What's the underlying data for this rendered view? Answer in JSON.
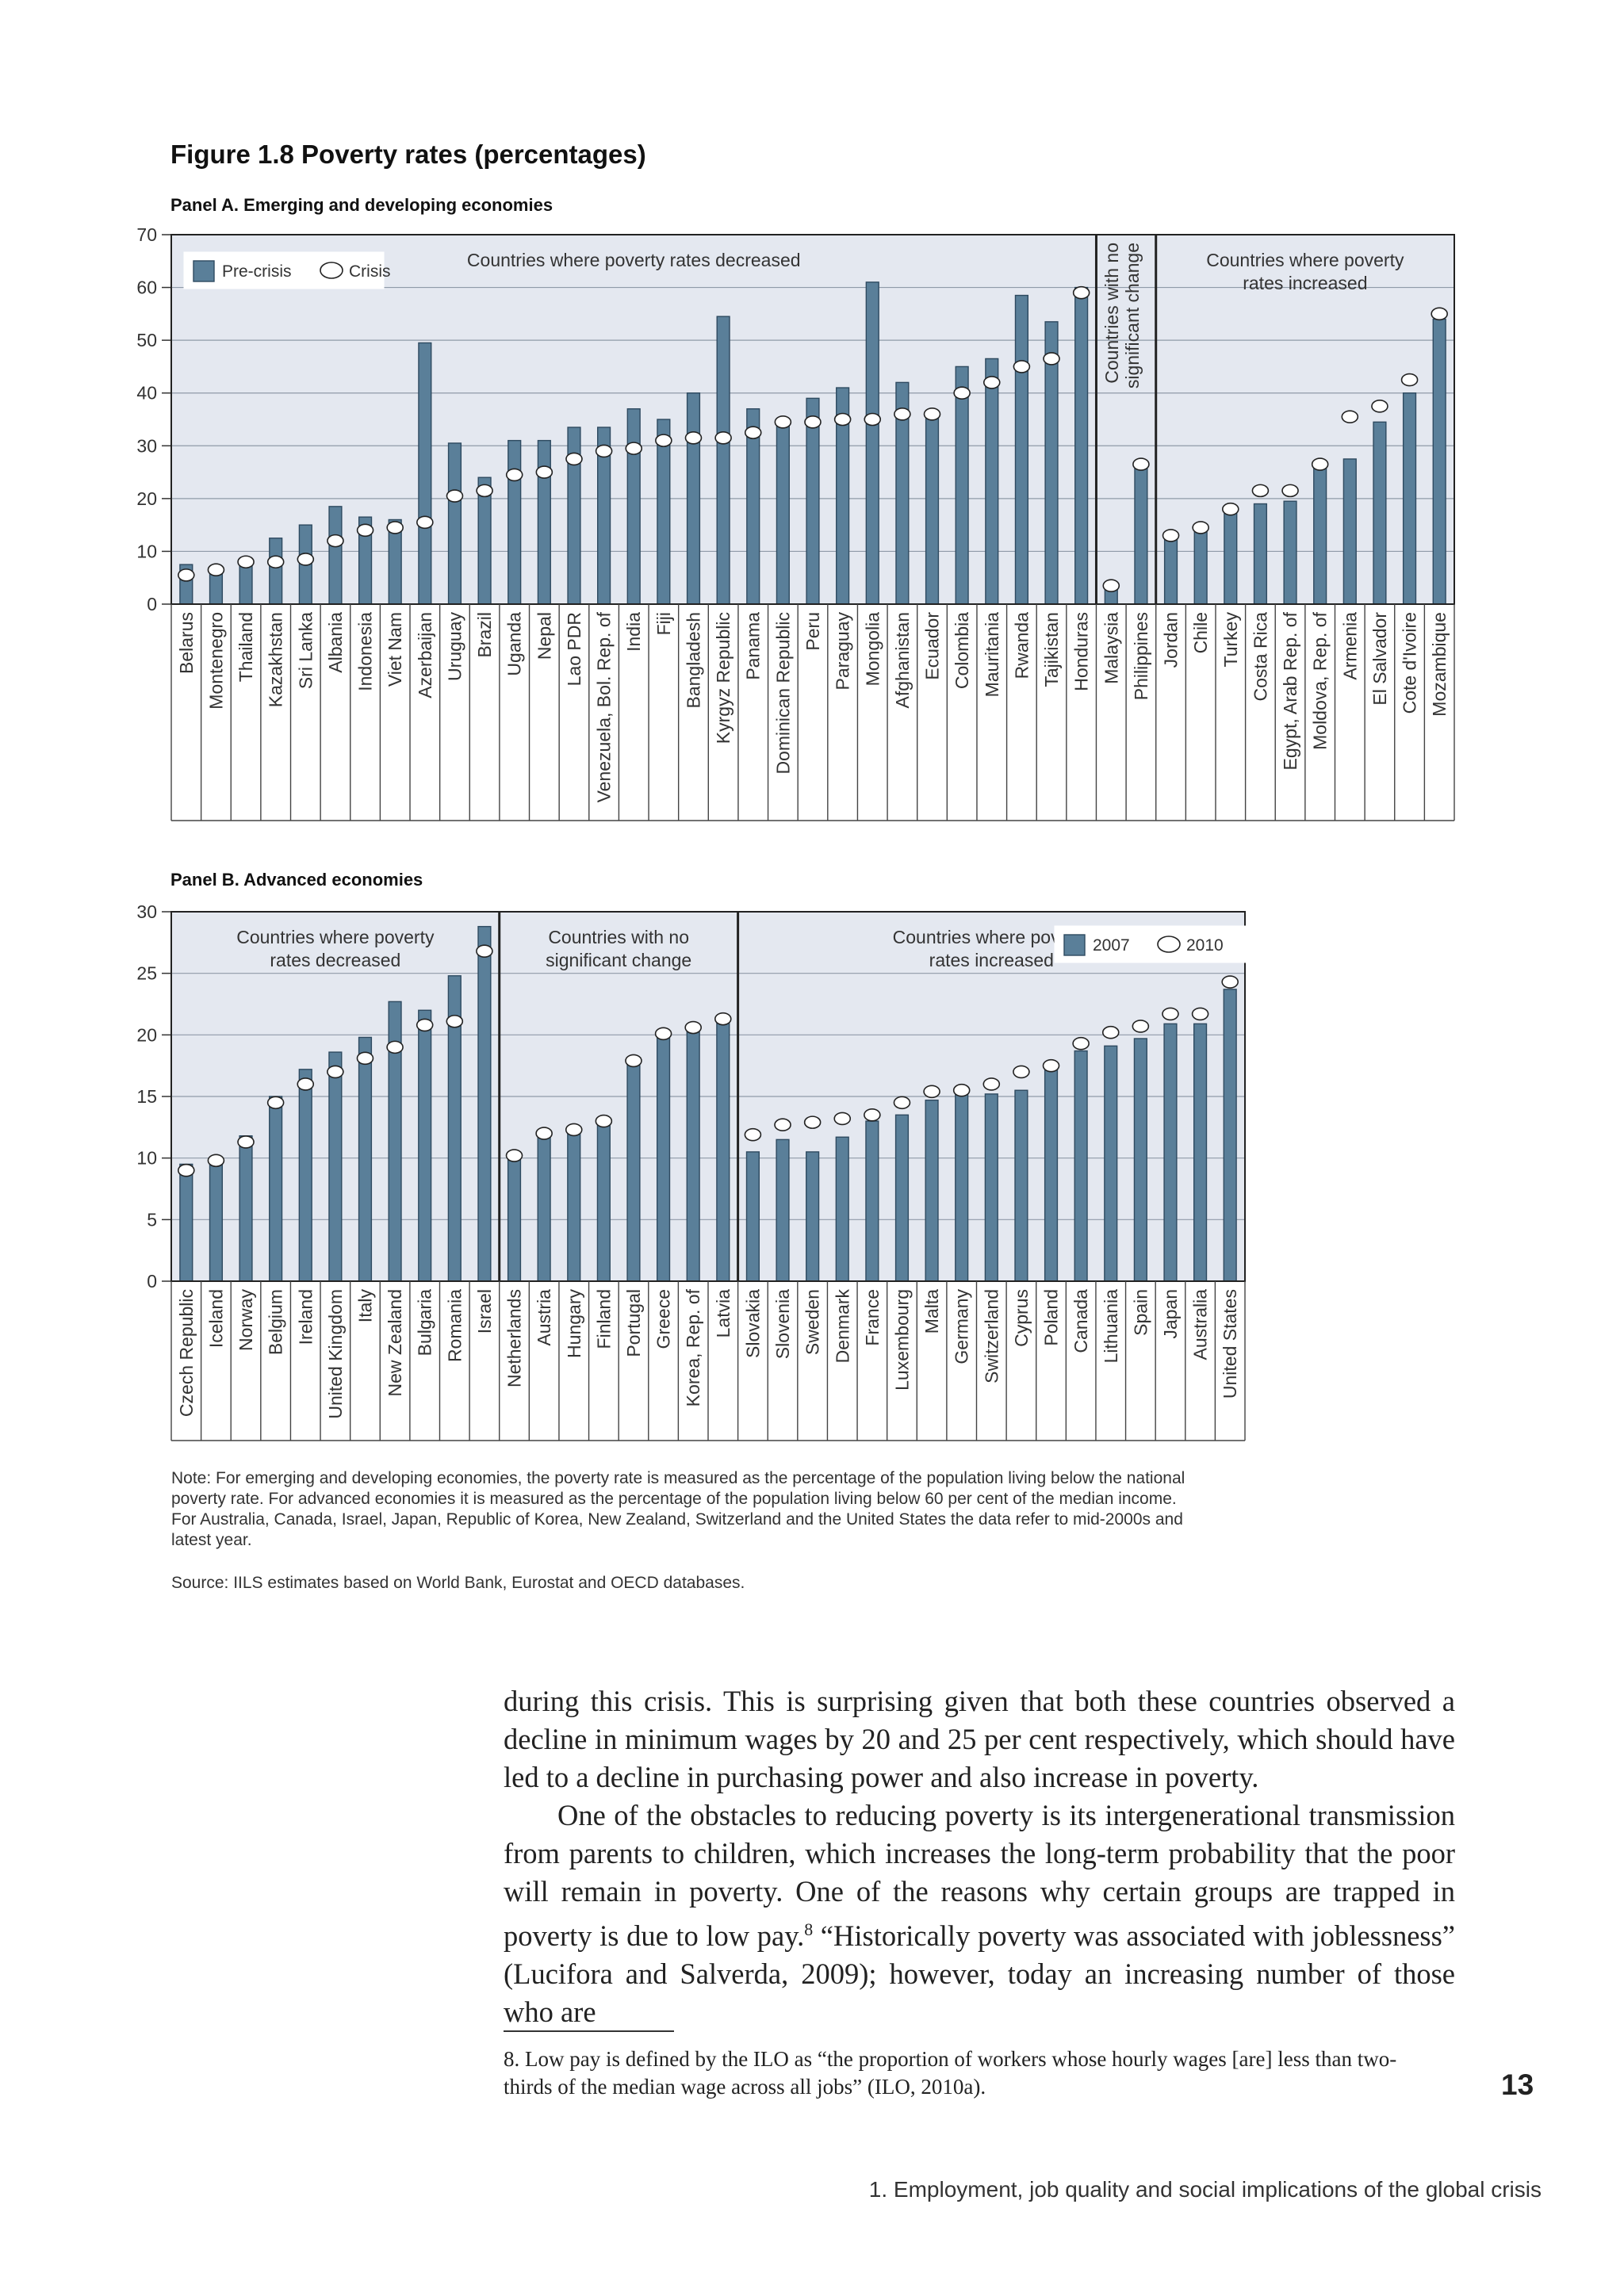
{
  "figure": {
    "title": "Figure 1.8  Poverty rates (percentages)",
    "note": "Note: For emerging and developing economies, the poverty rate is measured as the percentage of the population living below the national poverty rate. For advanced economies it is measured as the percentage of the population living below 60 per cent of the median income. For Australia, Canada, Israel, Japan, Republic of Korea, New Zealand, Switzerland and the United States the data refer to mid-2000s and latest year.",
    "source": "Source: IILS estimates based on World Bank, Eurostat and OECD databases."
  },
  "colors": {
    "bar": "#5a7f99",
    "bar_stroke": "#2e4a60",
    "plot_bg": "#e4e8f0",
    "marker": "#ffffff"
  },
  "chart_data": [
    {
      "type": "bar",
      "title": "Panel A. Emerging and developing economies",
      "ylim": [
        0,
        70
      ],
      "yticks": [
        0,
        10,
        20,
        30,
        40,
        50,
        60,
        70
      ],
      "grid": true,
      "legend": {
        "position": "top-left",
        "bar_label": "Pre-crisis",
        "marker_label": "Crisis"
      },
      "groups": [
        {
          "label": "Countries where poverty rates decreased",
          "start": 0,
          "end": 30
        },
        {
          "label": "Countries with no significant change",
          "start": 31,
          "end": 32
        },
        {
          "label": "Countries where poverty rates increased",
          "start": 33,
          "end": 42
        }
      ],
      "categories": [
        "Belarus",
        "Montenegro",
        "Thailand",
        "Kazakhstan",
        "Sri Lanka",
        "Albania",
        "Indonesia",
        "Viet Nam",
        "Azerbaijan",
        "Uruguay",
        "Brazil",
        "Uganda",
        "Nepal",
        "Lao PDR",
        "Venezuela, Bol. Rep. of",
        "India",
        "Fiji",
        "Bangladesh",
        "Kyrgyz Republic",
        "Panama",
        "Dominican Republic",
        "Peru",
        "Paraguay",
        "Mongolia",
        "Afghanistan",
        "Ecuador",
        "Colombia",
        "Mauritania",
        "Rwanda",
        "Tajikistan",
        "Honduras",
        "Malaysia",
        "Philippines",
        "Jordan",
        "Chile",
        "Turkey",
        "Costa Rica",
        "Egypt, Arab Rep. of",
        "Moldova, Rep. of",
        "Armenia",
        "El Salvador",
        "Cote d'Ivoire",
        "Mozambique"
      ],
      "series": [
        {
          "name": "Pre-crisis",
          "kind": "bar",
          "values": [
            7.5,
            7,
            8,
            12.5,
            15,
            18.5,
            16.5,
            16,
            49.5,
            30.5,
            24,
            31,
            31,
            33.5,
            33.5,
            37,
            35,
            40,
            54.5,
            37,
            35,
            39,
            41,
            61,
            42,
            36,
            45,
            46.5,
            58.5,
            53.5,
            60,
            3.5,
            26.5,
            13,
            14,
            18,
            19,
            19.5,
            26.5,
            27.5,
            34.5,
            40,
            54
          ]
        },
        {
          "name": "Crisis",
          "kind": "marker",
          "values": [
            5.5,
            6.5,
            8,
            8,
            8.5,
            12,
            14,
            14.5,
            15.5,
            20.5,
            21.5,
            24.5,
            25,
            27.5,
            29,
            29.5,
            31,
            31.5,
            31.5,
            32.5,
            34.5,
            34.5,
            35,
            35,
            36,
            36,
            40,
            42,
            45,
            46.5,
            59,
            3.5,
            26.5,
            13,
            14.5,
            18,
            21.5,
            21.5,
            26.5,
            35.5,
            37.5,
            42.5,
            55
          ]
        }
      ]
    },
    {
      "type": "bar",
      "title": "Panel B. Advanced economies",
      "ylim": [
        0,
        30
      ],
      "yticks": [
        0,
        5,
        10,
        15,
        20,
        25,
        30
      ],
      "grid": true,
      "legend": {
        "position": "top-right",
        "bar_label": "2007",
        "marker_label": "2010"
      },
      "groups": [
        {
          "label": "Countries where poverty rates decreased",
          "start": 0,
          "end": 10
        },
        {
          "label": "Countries with no significant change",
          "start": 11,
          "end": 18
        },
        {
          "label": "Countries where poverty rates increased",
          "start": 19,
          "end": 35
        }
      ],
      "categories": [
        "Czech Republic",
        "Iceland",
        "Norway",
        "Belgium",
        "Ireland",
        "United Kingdom",
        "Italy",
        "New Zealand",
        "Bulgaria",
        "Romania",
        "Israel",
        "Netherlands",
        "Austria",
        "Hungary",
        "Finland",
        "Portugal",
        "Greece",
        "Korea, Rep. of",
        "Latvia",
        "Slovakia",
        "Slovenia",
        "Sweden",
        "Denmark",
        "France",
        "Luxembourg",
        "Malta",
        "Germany",
        "Switzerland",
        "Cyprus",
        "Poland",
        "Canada",
        "Lithuania",
        "Spain",
        "Japan",
        "Australia",
        "United States"
      ],
      "series": [
        {
          "name": "2007",
          "kind": "bar",
          "values": [
            9.5,
            9.5,
            11.8,
            15,
            17.2,
            18.6,
            19.8,
            22.7,
            22,
            24.8,
            28.8,
            10.5,
            12,
            12,
            13,
            18,
            20,
            20.5,
            21,
            10.5,
            11.5,
            10.5,
            11.7,
            13,
            13.5,
            14.7,
            15.5,
            15.2,
            15.5,
            17.2,
            18.7,
            19.1,
            19.7,
            20.9,
            20.9,
            23.7
          ]
        },
        {
          "name": "2010",
          "kind": "marker",
          "values": [
            9,
            9.8,
            11.3,
            14.5,
            16,
            17,
            18.1,
            19,
            20.8,
            21.1,
            26.8,
            10.2,
            12,
            12.3,
            13,
            17.9,
            20.1,
            20.6,
            21.3,
            11.9,
            12.7,
            12.9,
            13.2,
            13.5,
            14.5,
            15.4,
            15.5,
            16,
            17,
            17.5,
            19.3,
            20.2,
            20.7,
            21.7,
            21.7,
            24.3
          ]
        }
      ]
    }
  ],
  "body": {
    "p1": "during this crisis. This is surprising given that both these countries observed a decline in minimum wages by 20 and 25 per cent respectively, which should have led to a decline in purchasing power and also increase in poverty.",
    "p2_before": "One of the obstacles to reducing poverty is its intergenerational transmission from parents to children, which increases the long-term probability that the poor will remain in poverty. One of the reasons why certain groups are trapped in poverty is due to low pay.",
    "p2_ref": "8",
    "p2_after": " “Historically poverty was associated with joblessness” (Lucifora and Salverda, 2009); however, today an increasing number of those who are"
  },
  "footnote": "8. Low pay is defined by the ILO as “the proportion of workers whose hourly wages [are] less than two-thirds of the median wage across all jobs” (ILO, 2010a).",
  "page_number": "13",
  "running_footer": "1. Employment, job quality and social implications of the global crisis"
}
